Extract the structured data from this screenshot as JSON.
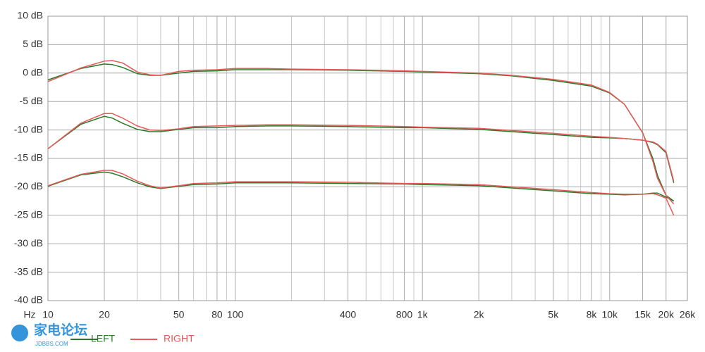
{
  "chart_data": {
    "type": "line",
    "x_unit": "Hz",
    "log_x": true,
    "grid": true,
    "legend": "bottom-left",
    "xlim": [
      10,
      26000
    ],
    "ylim": [
      -40,
      10
    ],
    "xticks": [
      10,
      20,
      50,
      80,
      100,
      400,
      800,
      {
        "value": 1000,
        "label": "1k"
      },
      {
        "value": 2000,
        "label": "2k"
      },
      {
        "value": 5000,
        "label": "5k"
      },
      {
        "value": 8000,
        "label": "8k"
      },
      {
        "value": 10000,
        "label": "10k"
      },
      {
        "value": 15000,
        "label": "15k"
      },
      {
        "value": 20000,
        "label": "20k"
      },
      {
        "value": 26000,
        "label": "26k"
      }
    ],
    "x_minor_grid": [
      30,
      40,
      60,
      70,
      90,
      200,
      300,
      500,
      600,
      700,
      900,
      3000,
      4000,
      6000,
      7000,
      9000
    ],
    "yticks": [
      {
        "value": 10,
        "label": "10 dB"
      },
      {
        "value": 5,
        "label": "5 dB"
      },
      {
        "value": 0,
        "label": "0 dB"
      },
      {
        "value": -5,
        "label": "-5 dB"
      },
      {
        "value": -10,
        "label": "-10 dB"
      },
      {
        "value": -15,
        "label": "-15 dB"
      },
      {
        "value": -20,
        "label": "-20 dB"
      },
      {
        "value": -25,
        "label": "-25 dB"
      },
      {
        "value": -30,
        "label": "-30 dB"
      },
      {
        "value": -35,
        "label": "-35 dB"
      },
      {
        "value": -40,
        "label": "-40 dB"
      }
    ],
    "x": [
      10,
      15,
      20,
      22,
      25,
      30,
      35,
      40,
      50,
      60,
      80,
      100,
      150,
      200,
      400,
      800,
      1000,
      2000,
      3000,
      5000,
      8000,
      10000,
      12000,
      15000,
      17000,
      18000,
      20000,
      22000
    ],
    "series": [
      {
        "name": "LEFT",
        "color": "#2a7a2a",
        "lines": [
          [
            -1.2,
            0.8,
            1.6,
            1.5,
            1.0,
            -0.1,
            -0.4,
            -0.4,
            0.0,
            0.3,
            0.4,
            0.6,
            0.6,
            0.6,
            0.5,
            0.3,
            0.2,
            -0.1,
            -0.5,
            -1.3,
            -2.3,
            -3.5,
            -5.5,
            -10.5,
            -15,
            -18,
            -21.5,
            -22.5
          ],
          [
            -13.3,
            -9,
            -7.6,
            -7.9,
            -8.8,
            -9.9,
            -10.3,
            -10.3,
            -9.9,
            -9.6,
            -9.6,
            -9.4,
            -9.3,
            -9.3,
            -9.4,
            -9.6,
            -9.6,
            -9.9,
            -10.3,
            -10.8,
            -11.3,
            -11.4,
            -11.5,
            -11.8,
            -12.2,
            -12.6,
            -14,
            -19.3
          ],
          [
            -19.9,
            -17.9,
            -17.4,
            -17.6,
            -18.2,
            -19.3,
            -20,
            -20.3,
            -19.9,
            -19.6,
            -19.5,
            -19.3,
            -19.3,
            -19.3,
            -19.4,
            -19.5,
            -19.6,
            -19.8,
            -20.2,
            -20.7,
            -21.2,
            -21.3,
            -21.4,
            -21.3,
            -21.1,
            -21.1,
            -21.8,
            -22.5
          ]
        ]
      },
      {
        "name": "RIGHT",
        "color": "#e8595a",
        "lines": [
          [
            -1.5,
            0.9,
            2.1,
            2.2,
            1.8,
            0.2,
            -0.3,
            -0.4,
            0.3,
            0.5,
            0.6,
            0.8,
            0.8,
            0.7,
            0.6,
            0.4,
            0.3,
            0.0,
            -0.4,
            -1.1,
            -2.1,
            -3.4,
            -5.5,
            -10.5,
            -15.5,
            -18.5,
            -21.5,
            -23
          ],
          [
            -13.3,
            -8.8,
            -7.1,
            -7.1,
            -7.9,
            -9.3,
            -10,
            -10.1,
            -9.8,
            -9.4,
            -9.3,
            -9.2,
            -9.1,
            -9.1,
            -9.2,
            -9.4,
            -9.5,
            -9.7,
            -10.1,
            -10.6,
            -11.1,
            -11.3,
            -11.5,
            -11.8,
            -12.1,
            -12.5,
            -13.8,
            -19
          ],
          [
            -19.8,
            -17.8,
            -17.1,
            -17.1,
            -17.7,
            -19,
            -19.8,
            -20.2,
            -19.8,
            -19.4,
            -19.3,
            -19.1,
            -19.1,
            -19.1,
            -19.2,
            -19.4,
            -19.4,
            -19.6,
            -20,
            -20.5,
            -21,
            -21.2,
            -21.3,
            -21.3,
            -21.2,
            -21.4,
            -22,
            -25
          ]
        ]
      }
    ]
  },
  "watermark": {
    "title": "家电论坛",
    "subtitle": "JDBBS.COM"
  }
}
